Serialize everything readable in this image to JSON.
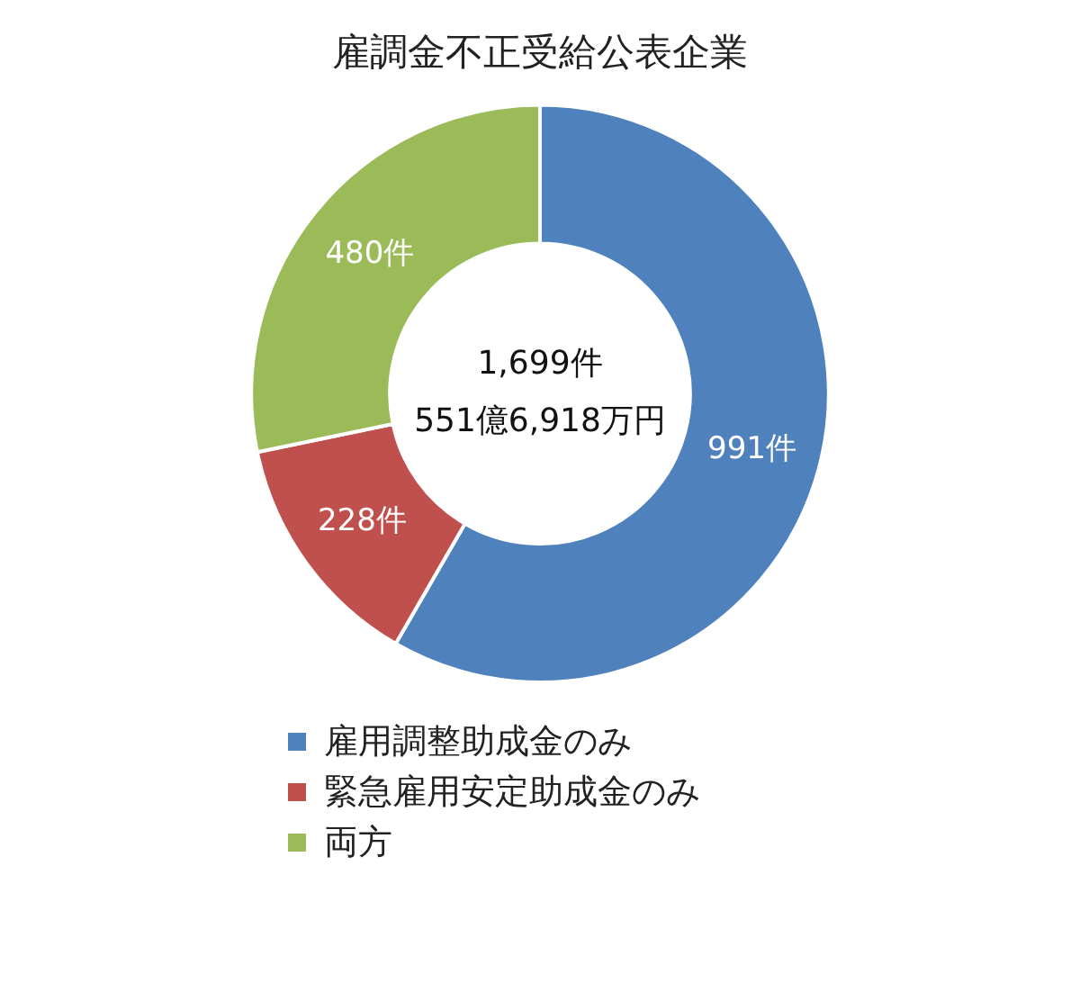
{
  "chart_data": {
    "type": "donut",
    "title": "雇調金不正受給公表企業",
    "categories": [
      "雇用調整助成金のみ",
      "緊急雇用安定助成金のみ",
      "両方"
    ],
    "values": [
      991,
      228,
      480
    ],
    "value_labels": [
      "991件",
      "228件",
      "480件"
    ],
    "colors": [
      "#4f81bd",
      "#c0504d",
      "#9bbb59"
    ],
    "annotations": [
      "1,699件",
      "551億6,918万円"
    ],
    "legend": "bottom left"
  }
}
